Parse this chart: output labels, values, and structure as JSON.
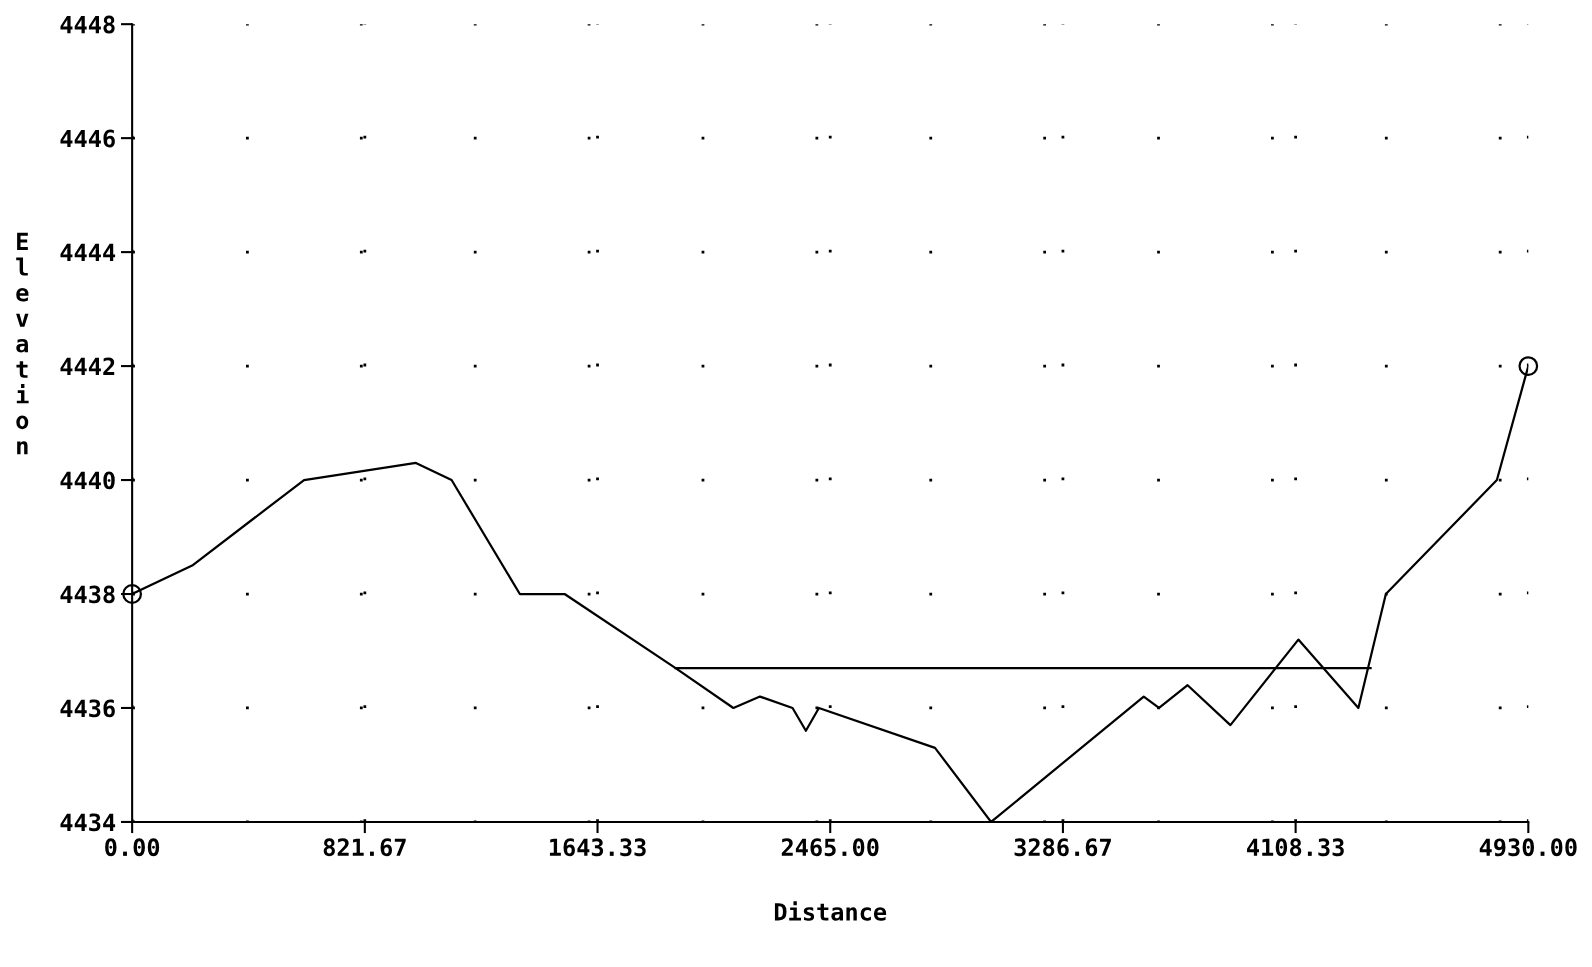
{
  "chart_data": {
    "type": "line",
    "xlabel": "Distance",
    "ylabel": "Elevation",
    "xlim": [
      0,
      4930
    ],
    "ylim": [
      4434,
      4448
    ],
    "xticks": [
      {
        "value": 0,
        "label": "0.00"
      },
      {
        "value": 821.67,
        "label": "821.67"
      },
      {
        "value": 1643.33,
        "label": "1643.33"
      },
      {
        "value": 2465,
        "label": "2465.00"
      },
      {
        "value": 3286.67,
        "label": "3286.67"
      },
      {
        "value": 4108.33,
        "label": "4108.33"
      },
      {
        "value": 4930,
        "label": "4930.00"
      }
    ],
    "yticks": [
      4434,
      4436,
      4438,
      4440,
      4442,
      4444,
      4446,
      4448
    ],
    "grid": true,
    "marker": "none",
    "line_style": "solid",
    "series": [
      {
        "color": "#000000",
        "x": [
          0,
          212,
          607,
          1002,
          1128,
          1369,
          1527,
          1919,
          2123,
          2217,
          2332,
          2379,
          2425,
          2835,
          3033,
          3572,
          3626,
          3727,
          3878,
          4118,
          4330,
          4427,
          4819,
          4930
        ],
        "values": [
          4438,
          4438.5,
          4440,
          4440.3,
          4440,
          4438,
          4438,
          4436.7,
          4436,
          4436.2,
          4436,
          4435.6,
          4436,
          4435.3,
          4434,
          4436.2,
          4436,
          4436.4,
          4435.7,
          4437.2,
          4436,
          4438,
          4440,
          4442
        ]
      },
      {
        "color": "#000000",
        "x": [
          1919,
          4373
        ],
        "values": [
          4436.7,
          4436.7
        ]
      },
      {
        "type": "scatter",
        "marker": "circle",
        "color": "#000000",
        "x": [
          0,
          4930
        ],
        "values": [
          4438,
          4442
        ]
      }
    ]
  }
}
